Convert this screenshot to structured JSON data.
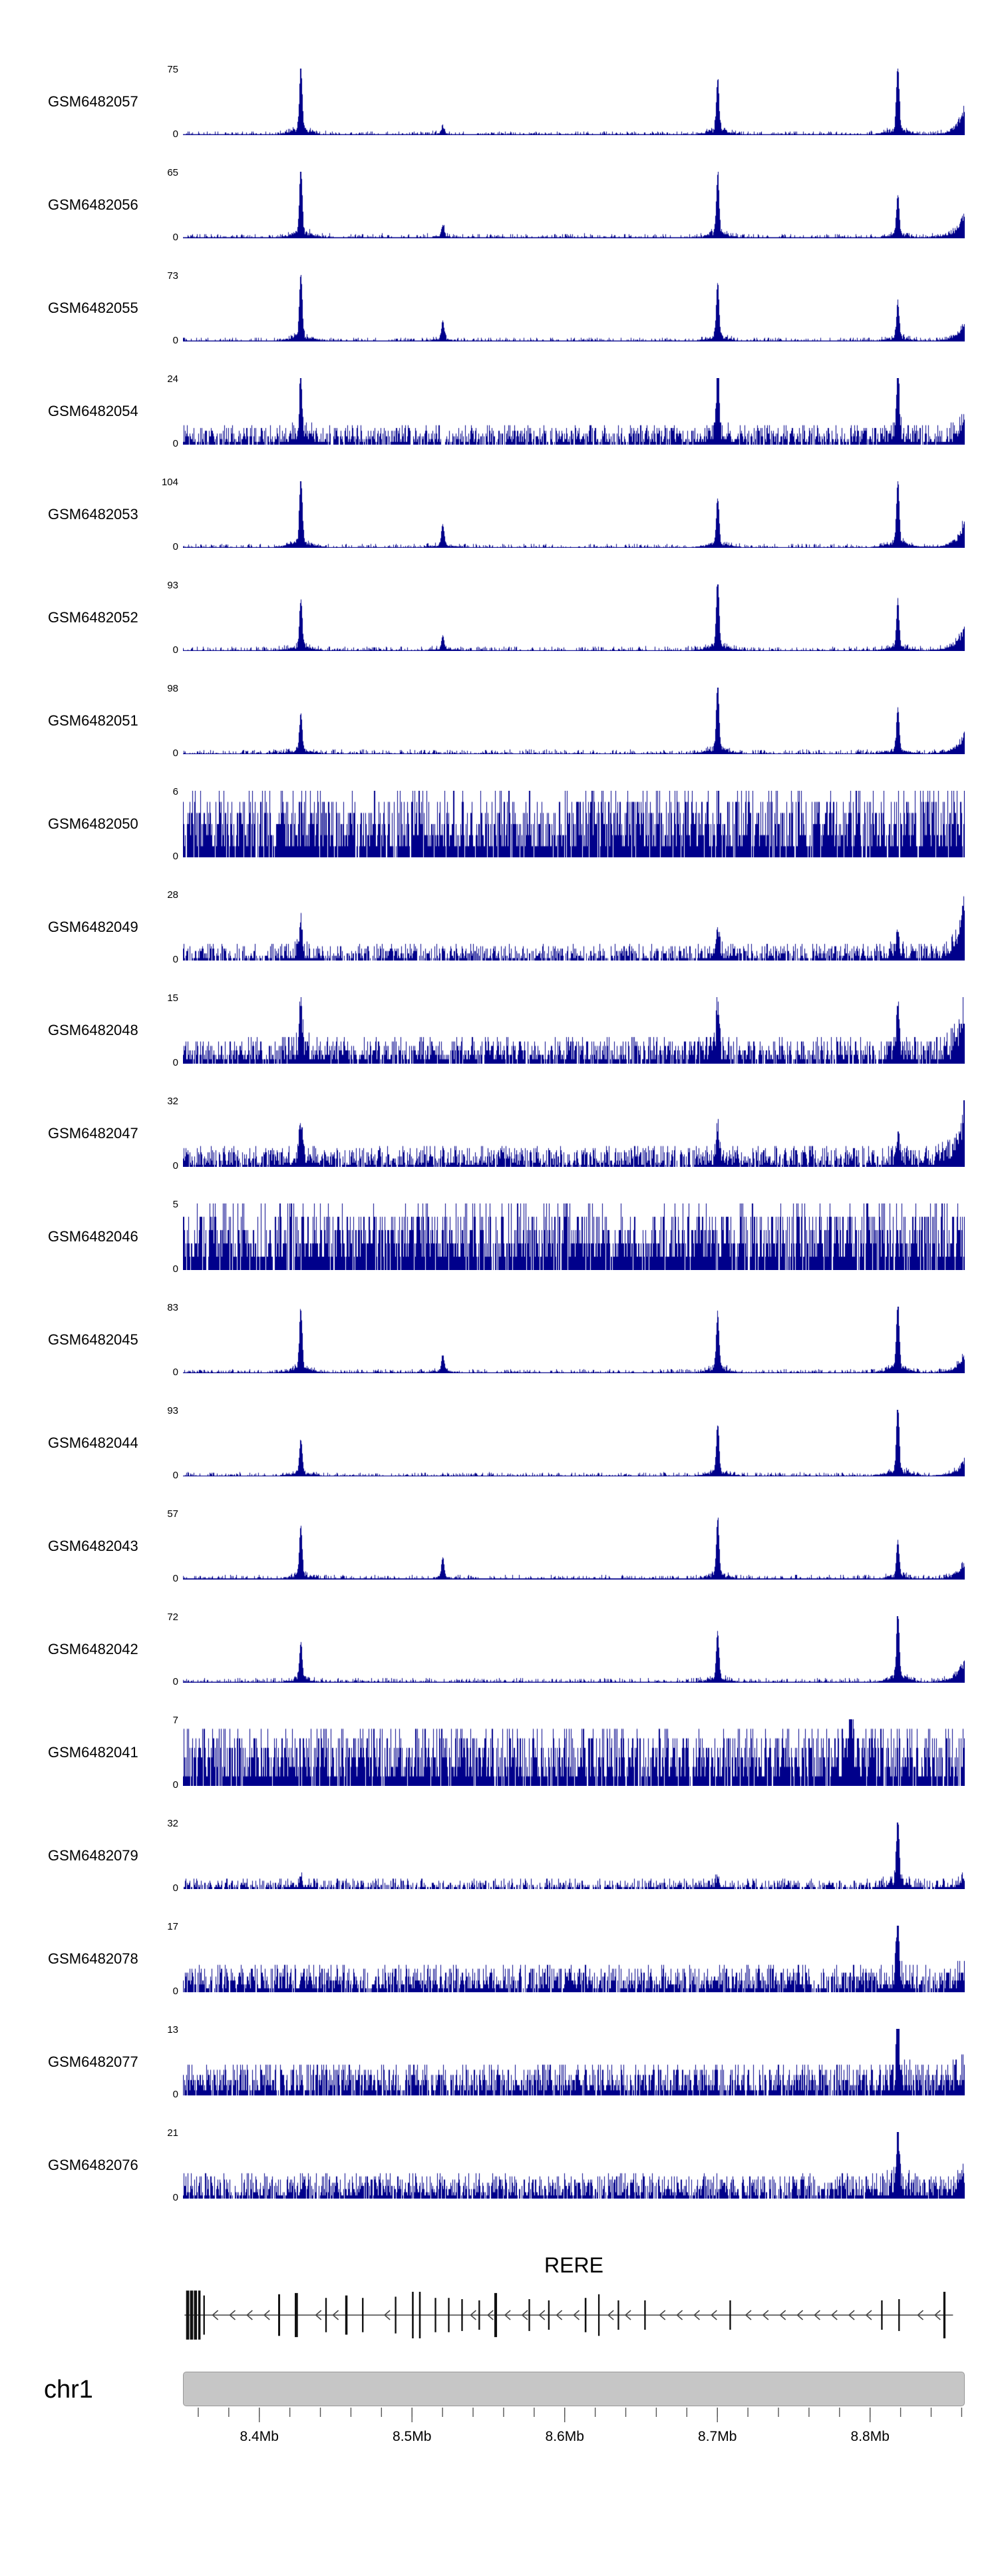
{
  "chart_data": {
    "type": "area",
    "title": "",
    "description": "Genome browser coverage tracks over chr1 RERE locus",
    "signal_color": "#00008B",
    "region": {
      "chromosome": "chr1",
      "start_mb": 8.35,
      "end_mb": 8.862,
      "unit": "Mb"
    },
    "x_axis": {
      "major_ticks": [
        {
          "mb": 8.4,
          "label": "8.4Mb"
        },
        {
          "mb": 8.5,
          "label": "8.5Mb"
        },
        {
          "mb": 8.6,
          "label": "8.6Mb"
        },
        {
          "mb": 8.7,
          "label": "8.7Mb"
        },
        {
          "mb": 8.8,
          "label": "8.8Mb"
        }
      ],
      "minor_tick_step_mb": 0.02
    },
    "tracks": [
      {
        "name": "GSM6482057",
        "ymax": 75,
        "ymin": 0,
        "noise": 0.06,
        "skew": 3.2,
        "edge": 0.55,
        "peaks": [
          {
            "mb": 8.427,
            "h": 0.95
          },
          {
            "mb": 8.52,
            "h": 0.1
          },
          {
            "mb": 8.7,
            "h": 0.78
          },
          {
            "mb": 8.818,
            "h": 1.0
          }
        ]
      },
      {
        "name": "GSM6482056",
        "ymax": 65,
        "ymin": 0,
        "noise": 0.07,
        "skew": 3.0,
        "edge": 0.5,
        "peaks": [
          {
            "mb": 8.427,
            "h": 1.0
          },
          {
            "mb": 8.52,
            "h": 0.18
          },
          {
            "mb": 8.7,
            "h": 0.9
          },
          {
            "mb": 8.818,
            "h": 0.6
          }
        ]
      },
      {
        "name": "GSM6482055",
        "ymax": 73,
        "ymin": 0,
        "noise": 0.06,
        "skew": 3.0,
        "edge": 0.32,
        "peaks": [
          {
            "mb": 8.427,
            "h": 0.97
          },
          {
            "mb": 8.52,
            "h": 0.28
          },
          {
            "mb": 8.7,
            "h": 0.8
          },
          {
            "mb": 8.818,
            "h": 0.55
          }
        ]
      },
      {
        "name": "GSM6482054",
        "ymax": 24,
        "ymin": 0,
        "noise": 0.3,
        "skew": 1.6,
        "edge": 0.35,
        "peaks": [
          {
            "mb": 8.427,
            "h": 0.85
          },
          {
            "mb": 8.7,
            "h": 1.0
          },
          {
            "mb": 8.818,
            "h": 0.9
          }
        ]
      },
      {
        "name": "GSM6482053",
        "ymax": 104,
        "ymin": 0,
        "noise": 0.06,
        "skew": 3.2,
        "edge": 0.5,
        "peaks": [
          {
            "mb": 8.427,
            "h": 1.0
          },
          {
            "mb": 8.52,
            "h": 0.32
          },
          {
            "mb": 8.7,
            "h": 0.7
          },
          {
            "mb": 8.818,
            "h": 0.93
          }
        ]
      },
      {
        "name": "GSM6482052",
        "ymax": 93,
        "ymin": 0,
        "noise": 0.07,
        "skew": 3.0,
        "edge": 0.45,
        "peaks": [
          {
            "mb": 8.427,
            "h": 0.72
          },
          {
            "mb": 8.52,
            "h": 0.2
          },
          {
            "mb": 8.7,
            "h": 1.0
          },
          {
            "mb": 8.818,
            "h": 0.66
          }
        ]
      },
      {
        "name": "GSM6482051",
        "ymax": 98,
        "ymin": 0,
        "noise": 0.07,
        "skew": 3.0,
        "edge": 0.42,
        "peaks": [
          {
            "mb": 8.427,
            "h": 0.55
          },
          {
            "mb": 8.7,
            "h": 1.0
          },
          {
            "mb": 8.818,
            "h": 0.62
          }
        ]
      },
      {
        "name": "GSM6482050",
        "ymax": 6,
        "ymin": 0,
        "noise": 1.0,
        "skew": 1.1,
        "edge": 0,
        "peaks": []
      },
      {
        "name": "GSM6482049",
        "ymax": 28,
        "ymin": 0,
        "noise": 0.26,
        "skew": 1.8,
        "edge": 1.0,
        "peaks": [
          {
            "mb": 8.427,
            "h": 0.5
          },
          {
            "mb": 8.7,
            "h": 0.42
          },
          {
            "mb": 8.818,
            "h": 0.4
          }
        ]
      },
      {
        "name": "GSM6482048",
        "ymax": 15,
        "ymin": 0,
        "noise": 0.4,
        "skew": 1.4,
        "edge": 0.85,
        "peaks": [
          {
            "mb": 8.427,
            "h": 0.8
          },
          {
            "mb": 8.7,
            "h": 0.65
          },
          {
            "mb": 8.818,
            "h": 0.8
          }
        ]
      },
      {
        "name": "GSM6482047",
        "ymax": 32,
        "ymin": 0,
        "noise": 0.32,
        "skew": 1.6,
        "edge": 1.0,
        "peaks": [
          {
            "mb": 8.427,
            "h": 0.5
          },
          {
            "mb": 8.7,
            "h": 0.5
          },
          {
            "mb": 8.818,
            "h": 0.38
          }
        ]
      },
      {
        "name": "GSM6482046",
        "ymax": 5,
        "ymin": 0,
        "noise": 1.0,
        "skew": 1.05,
        "edge": 0,
        "peaks": []
      },
      {
        "name": "GSM6482045",
        "ymax": 83,
        "ymin": 0,
        "noise": 0.06,
        "skew": 3.0,
        "edge": 0.35,
        "peaks": [
          {
            "mb": 8.427,
            "h": 0.9
          },
          {
            "mb": 8.52,
            "h": 0.24
          },
          {
            "mb": 8.7,
            "h": 0.82
          },
          {
            "mb": 8.818,
            "h": 1.0
          }
        ]
      },
      {
        "name": "GSM6482044",
        "ymax": 93,
        "ymin": 0,
        "noise": 0.06,
        "skew": 3.2,
        "edge": 0.3,
        "peaks": [
          {
            "mb": 8.427,
            "h": 0.5
          },
          {
            "mb": 8.7,
            "h": 0.72
          },
          {
            "mb": 8.818,
            "h": 1.0
          }
        ]
      },
      {
        "name": "GSM6482043",
        "ymax": 57,
        "ymin": 0,
        "noise": 0.07,
        "skew": 3.0,
        "edge": 0.3,
        "peaks": [
          {
            "mb": 8.427,
            "h": 0.75
          },
          {
            "mb": 8.52,
            "h": 0.3
          },
          {
            "mb": 8.7,
            "h": 0.85
          },
          {
            "mb": 8.818,
            "h": 0.55
          }
        ]
      },
      {
        "name": "GSM6482042",
        "ymax": 72,
        "ymin": 0,
        "noise": 0.07,
        "skew": 3.0,
        "edge": 0.45,
        "peaks": [
          {
            "mb": 8.427,
            "h": 0.55
          },
          {
            "mb": 8.7,
            "h": 0.7
          },
          {
            "mb": 8.818,
            "h": 1.0
          }
        ]
      },
      {
        "name": "GSM6482041",
        "ymax": 7,
        "ymin": 0,
        "noise": 0.9,
        "skew": 1.1,
        "edge": 0,
        "peaks": [
          {
            "mb": 8.787,
            "h": 1.0
          }
        ]
      },
      {
        "name": "GSM6482079",
        "ymax": 32,
        "ymin": 0,
        "noise": 0.16,
        "skew": 2.2,
        "edge": 0.2,
        "peaks": [
          {
            "mb": 8.427,
            "h": 0.16
          },
          {
            "mb": 8.7,
            "h": 0.15
          },
          {
            "mb": 8.818,
            "h": 1.0
          }
        ]
      },
      {
        "name": "GSM6482078",
        "ymax": 17,
        "ymin": 0,
        "noise": 0.42,
        "skew": 1.4,
        "edge": 0.3,
        "peaks": [
          {
            "mb": 8.818,
            "h": 1.0
          }
        ]
      },
      {
        "name": "GSM6482077",
        "ymax": 13,
        "ymin": 0,
        "noise": 0.48,
        "skew": 1.3,
        "edge": 0.3,
        "peaks": [
          {
            "mb": 8.818,
            "h": 1.0
          }
        ]
      },
      {
        "name": "GSM6482076",
        "ymax": 21,
        "ymin": 0,
        "noise": 0.38,
        "skew": 1.5,
        "edge": 0.3,
        "peaks": [
          {
            "mb": 8.818,
            "h": 1.0
          }
        ]
      }
    ],
    "gene_track": {
      "name": "RERE",
      "strand": "-",
      "line_start": 0.002,
      "line_end": 0.985,
      "exons": [
        {
          "pos": 0.006,
          "w": 0.004,
          "h": 1.0
        },
        {
          "pos": 0.011,
          "w": 0.004,
          "h": 1.0
        },
        {
          "pos": 0.016,
          "w": 0.004,
          "h": 1.0
        },
        {
          "pos": 0.021,
          "w": 0.003,
          "h": 1.0
        },
        {
          "pos": 0.027,
          "w": 0.002,
          "h": 0.8
        },
        {
          "pos": 0.123,
          "w": 0.0025,
          "h": 0.85
        },
        {
          "pos": 0.145,
          "w": 0.004,
          "h": 0.9
        },
        {
          "pos": 0.183,
          "w": 0.002,
          "h": 0.7
        },
        {
          "pos": 0.209,
          "w": 0.003,
          "h": 0.8
        },
        {
          "pos": 0.23,
          "w": 0.002,
          "h": 0.7
        },
        {
          "pos": 0.272,
          "w": 0.002,
          "h": 0.75
        },
        {
          "pos": 0.294,
          "w": 0.0022,
          "h": 0.95
        },
        {
          "pos": 0.303,
          "w": 0.0022,
          "h": 0.95
        },
        {
          "pos": 0.323,
          "w": 0.002,
          "h": 0.7
        },
        {
          "pos": 0.34,
          "w": 0.002,
          "h": 0.7
        },
        {
          "pos": 0.357,
          "w": 0.002,
          "h": 0.65
        },
        {
          "pos": 0.379,
          "w": 0.002,
          "h": 0.6
        },
        {
          "pos": 0.4,
          "w": 0.0035,
          "h": 0.9
        },
        {
          "pos": 0.443,
          "w": 0.002,
          "h": 0.65
        },
        {
          "pos": 0.468,
          "w": 0.002,
          "h": 0.6
        },
        {
          "pos": 0.515,
          "w": 0.0022,
          "h": 0.7
        },
        {
          "pos": 0.532,
          "w": 0.002,
          "h": 0.85
        },
        {
          "pos": 0.557,
          "w": 0.002,
          "h": 0.6
        },
        {
          "pos": 0.591,
          "w": 0.002,
          "h": 0.6
        },
        {
          "pos": 0.7,
          "w": 0.002,
          "h": 0.6
        },
        {
          "pos": 0.894,
          "w": 0.002,
          "h": 0.6
        },
        {
          "pos": 0.916,
          "w": 0.002,
          "h": 0.65
        },
        {
          "pos": 0.974,
          "w": 0.0028,
          "h": 0.95
        }
      ]
    }
  }
}
